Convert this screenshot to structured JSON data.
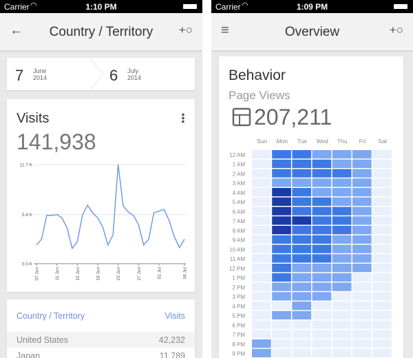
{
  "left_screen": {
    "status": {
      "carrier": "Carrier",
      "time": "1:10 PM"
    },
    "nav": {
      "title": "Country / Territory",
      "back_icon": "arrow-left-icon",
      "right_icon": "segment-icon"
    },
    "date_range": {
      "start_day": "7",
      "start_month": "June",
      "start_year": "2014",
      "end_day": "6",
      "end_month": "July",
      "end_year": "2014"
    },
    "visits_card": {
      "title": "Visits",
      "total": "141,938"
    },
    "table": {
      "headers": [
        "Country / Territory",
        "Visits"
      ],
      "rows": [
        {
          "country": "United States",
          "visits": "42,232"
        },
        {
          "country": "Japan",
          "visits": "11,789"
        }
      ]
    }
  },
  "right_screen": {
    "status": {
      "carrier": "Carrier",
      "time": "1:09 PM"
    },
    "nav": {
      "title": "Overview",
      "menu_icon": "hamburger-icon",
      "right_icon": "segment-icon"
    },
    "behavior": {
      "title": "Behavior",
      "metric": "Page Views",
      "total": "207,211"
    }
  },
  "chart_data": [
    {
      "type": "line",
      "title": "Visits",
      "ylabel": "",
      "xlabel": "",
      "ylim": [
        0,
        11.7
      ],
      "y_ticks": [
        "0.0 K",
        "5.8 K",
        "11.7 K"
      ],
      "x_ticks": [
        "07 Jun",
        "11 Jun",
        "15 Jun",
        "19 Jun",
        "23 Jun",
        "27 Jun",
        "01 Jul",
        "06 Jul"
      ],
      "x_tick_index": [
        0,
        4,
        8,
        12,
        16,
        20,
        24,
        29
      ],
      "series": [
        {
          "name": "Visits",
          "color": "#6f9be6",
          "values": [
            2.2,
            2.9,
            5.7,
            5.7,
            5.8,
            5.4,
            4.2,
            1.8,
            2.6,
            5.7,
            6.9,
            6.0,
            5.4,
            4.3,
            2.2,
            3.4,
            11.7,
            6.8,
            6.1,
            5.7,
            4.6,
            2.2,
            2.9,
            6.0,
            6.2,
            6.4,
            5.1,
            3.2,
            1.9,
            2.9
          ]
        }
      ]
    },
    {
      "type": "heatmap",
      "title": "Page Views",
      "columns": [
        "Sun",
        "Mon",
        "Tue",
        "Wed",
        "Thu",
        "Fri",
        "Sat"
      ],
      "rows": [
        "12 AM",
        "1 AM",
        "2 AM",
        "3 AM",
        "4 AM",
        "5 AM",
        "6 AM",
        "7 AM",
        "8 AM",
        "9 AM",
        "10 AM",
        "11 AM",
        "12 PM",
        "1 PM",
        "2 PM",
        "3 PM",
        "4 PM",
        "5 PM",
        "6 PM",
        "7 PM",
        "8 PM",
        "9 PM"
      ],
      "levels": [
        [
          0,
          2,
          2,
          1,
          1,
          1,
          0
        ],
        [
          0,
          2,
          2,
          2,
          1,
          1,
          0
        ],
        [
          0,
          2,
          2,
          2,
          2,
          1,
          0
        ],
        [
          0,
          1,
          1,
          1,
          1,
          1,
          0
        ],
        [
          0,
          3,
          2,
          1,
          1,
          1,
          0
        ],
        [
          0,
          3,
          2,
          2,
          1,
          1,
          0
        ],
        [
          0,
          3,
          2,
          2,
          2,
          1,
          0
        ],
        [
          0,
          3,
          3,
          2,
          2,
          1,
          0
        ],
        [
          0,
          3,
          2,
          2,
          2,
          1,
          0
        ],
        [
          0,
          2,
          2,
          2,
          1,
          1,
          0
        ],
        [
          0,
          2,
          2,
          2,
          1,
          1,
          0
        ],
        [
          0,
          2,
          2,
          2,
          1,
          1,
          0
        ],
        [
          0,
          2,
          1,
          1,
          1,
          1,
          0
        ],
        [
          0,
          2,
          1,
          1,
          1,
          0,
          0
        ],
        [
          0,
          1,
          1,
          1,
          1,
          0,
          0
        ],
        [
          0,
          1,
          1,
          1,
          0,
          0,
          0
        ],
        [
          0,
          0,
          1,
          0,
          0,
          0,
          0
        ],
        [
          0,
          1,
          1,
          0,
          0,
          0,
          0
        ],
        [
          0,
          0,
          0,
          0,
          0,
          0,
          0
        ],
        [
          0,
          0,
          0,
          0,
          0,
          0,
          0
        ],
        [
          1,
          0,
          0,
          0,
          0,
          0,
          0
        ],
        [
          1,
          0,
          0,
          0,
          0,
          0,
          0
        ]
      ],
      "level_colors": [
        "#e9f0fc",
        "#7ea8f0",
        "#3d79e2",
        "#1b3aa6"
      ]
    }
  ]
}
